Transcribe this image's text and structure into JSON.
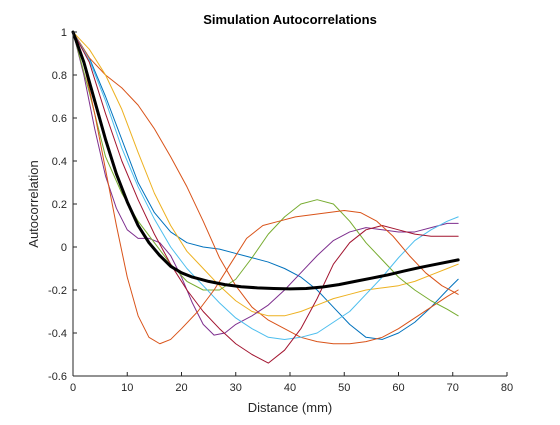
{
  "chart_data": {
    "type": "line",
    "title": "Simulation Autocorrelations",
    "xlabel": "Distance (mm)",
    "ylabel": "Autocorrelation",
    "xlim": [
      0,
      80
    ],
    "ylim": [
      -0.6,
      1
    ],
    "xticks": [
      0,
      10,
      20,
      30,
      40,
      50,
      60,
      70,
      80
    ],
    "yticks": [
      -0.6,
      -0.4,
      -0.2,
      0,
      0.2,
      0.4,
      0.6,
      0.8,
      1
    ],
    "ytick_labels": [
      "-0.6",
      "-0.4",
      "-0.2",
      "0",
      "0.2",
      "0.4",
      "0.6",
      "0.8",
      "1"
    ],
    "xtick_labels": [
      "0",
      "10",
      "20",
      "30",
      "40",
      "50",
      "60",
      "70",
      "80"
    ],
    "grid": false,
    "legend": "none",
    "series": [
      {
        "color": "#0072BD",
        "linewidth": 1,
        "x": [
          0,
          3,
          6,
          9,
          12,
          15,
          18,
          21,
          24,
          27,
          30,
          33,
          36,
          39,
          42,
          45,
          48,
          51,
          54,
          57,
          60,
          63,
          66,
          69,
          71
        ],
        "y": [
          1,
          0.88,
          0.7,
          0.5,
          0.3,
          0.16,
          0.07,
          0.02,
          0.0,
          -0.01,
          -0.03,
          -0.05,
          -0.07,
          -0.1,
          -0.14,
          -0.2,
          -0.28,
          -0.36,
          -0.42,
          -0.43,
          -0.4,
          -0.35,
          -0.28,
          -0.2,
          -0.15
        ]
      },
      {
        "color": "#D95319",
        "linewidth": 1,
        "x": [
          0,
          3,
          6,
          9,
          12,
          15,
          18,
          21,
          24,
          27,
          30,
          33,
          36,
          39,
          42,
          45,
          48,
          51,
          54,
          57,
          60,
          63,
          66,
          69,
          71
        ],
        "y": [
          1,
          0.88,
          0.8,
          0.74,
          0.66,
          0.55,
          0.42,
          0.28,
          0.12,
          -0.05,
          -0.18,
          -0.28,
          -0.34,
          -0.38,
          -0.42,
          -0.44,
          -0.45,
          -0.45,
          -0.44,
          -0.42,
          -0.38,
          -0.33,
          -0.28,
          -0.23,
          -0.2
        ]
      },
      {
        "color": "#EDB120",
        "linewidth": 1,
        "x": [
          0,
          3,
          6,
          9,
          12,
          15,
          18,
          21,
          24,
          27,
          30,
          33,
          36,
          39,
          42,
          45,
          48,
          51,
          54,
          57,
          60,
          63,
          66,
          69,
          71
        ],
        "y": [
          1,
          0.92,
          0.8,
          0.64,
          0.44,
          0.25,
          0.1,
          -0.02,
          -0.1,
          -0.18,
          -0.25,
          -0.3,
          -0.32,
          -0.32,
          -0.3,
          -0.27,
          -0.24,
          -0.22,
          -0.2,
          -0.19,
          -0.18,
          -0.16,
          -0.13,
          -0.1,
          -0.08
        ]
      },
      {
        "color": "#7E2F8E",
        "linewidth": 1,
        "x": [
          0,
          2,
          4,
          6,
          8,
          10,
          12,
          14,
          16,
          18,
          20,
          22,
          24,
          26,
          28,
          30,
          33,
          36,
          39,
          42,
          45,
          48,
          51,
          54,
          57,
          60,
          63,
          66,
          69,
          71
        ],
        "y": [
          1,
          0.8,
          0.55,
          0.33,
          0.18,
          0.08,
          0.04,
          0.04,
          0.02,
          -0.04,
          -0.14,
          -0.26,
          -0.36,
          -0.41,
          -0.4,
          -0.36,
          -0.32,
          -0.27,
          -0.2,
          -0.12,
          -0.04,
          0.03,
          0.07,
          0.09,
          0.08,
          0.07,
          0.07,
          0.09,
          0.11,
          0.11
        ]
      },
      {
        "color": "#77AC30",
        "linewidth": 1,
        "x": [
          0,
          3,
          6,
          9,
          12,
          15,
          18,
          21,
          24,
          27,
          30,
          33,
          36,
          39,
          42,
          45,
          48,
          51,
          54,
          57,
          60,
          63,
          66,
          69,
          71
        ],
        "y": [
          1,
          0.72,
          0.42,
          0.25,
          0.12,
          0.02,
          -0.08,
          -0.16,
          -0.2,
          -0.2,
          -0.15,
          -0.05,
          0.06,
          0.14,
          0.2,
          0.22,
          0.2,
          0.12,
          0.02,
          -0.06,
          -0.14,
          -0.2,
          -0.25,
          -0.29,
          -0.32
        ]
      },
      {
        "color": "#4DBEEE",
        "linewidth": 1,
        "x": [
          0,
          3,
          6,
          9,
          12,
          15,
          18,
          21,
          24,
          27,
          30,
          33,
          36,
          39,
          42,
          45,
          48,
          51,
          54,
          57,
          60,
          63,
          66,
          69,
          71
        ],
        "y": [
          1,
          0.87,
          0.68,
          0.46,
          0.28,
          0.13,
          0.0,
          -0.1,
          -0.18,
          -0.26,
          -0.33,
          -0.38,
          -0.42,
          -0.43,
          -0.42,
          -0.4,
          -0.35,
          -0.3,
          -0.22,
          -0.14,
          -0.05,
          0.03,
          0.08,
          0.12,
          0.14
        ]
      },
      {
        "color": "#A2142F",
        "linewidth": 1,
        "x": [
          0,
          3,
          6,
          9,
          12,
          15,
          18,
          21,
          24,
          27,
          30,
          33,
          36,
          39,
          42,
          45,
          48,
          51,
          54,
          57,
          60,
          63,
          66,
          69,
          71
        ],
        "y": [
          1,
          0.86,
          0.62,
          0.4,
          0.22,
          0.06,
          -0.08,
          -0.2,
          -0.3,
          -0.38,
          -0.45,
          -0.5,
          -0.54,
          -0.48,
          -0.38,
          -0.24,
          -0.08,
          0.02,
          0.08,
          0.1,
          0.08,
          0.06,
          0.05,
          0.05,
          0.05
        ]
      },
      {
        "color": "#D95319",
        "linewidth": 1,
        "x": [
          0,
          2,
          4,
          6,
          8,
          10,
          12,
          14,
          16,
          18,
          20,
          23,
          26,
          29,
          32,
          35,
          38,
          41,
          44,
          47,
          50,
          53,
          56,
          59,
          62,
          65,
          68,
          71
        ],
        "y": [
          1,
          0.85,
          0.62,
          0.36,
          0.1,
          -0.14,
          -0.32,
          -0.42,
          -0.45,
          -0.43,
          -0.38,
          -0.3,
          -0.2,
          -0.08,
          0.04,
          0.1,
          0.12,
          0.14,
          0.15,
          0.16,
          0.17,
          0.16,
          0.12,
          0.05,
          -0.04,
          -0.12,
          -0.18,
          -0.22
        ]
      },
      {
        "color": "#000000",
        "linewidth": 3,
        "x": [
          0,
          2,
          4,
          6,
          8,
          10,
          12,
          14,
          16,
          18,
          20,
          22,
          25,
          28,
          31,
          34,
          37,
          40,
          43,
          46,
          49,
          52,
          55,
          58,
          61,
          64,
          67,
          71
        ],
        "y": [
          1,
          0.86,
          0.68,
          0.5,
          0.34,
          0.21,
          0.1,
          0.02,
          -0.04,
          -0.09,
          -0.12,
          -0.14,
          -0.16,
          -0.175,
          -0.185,
          -0.19,
          -0.193,
          -0.195,
          -0.193,
          -0.186,
          -0.175,
          -0.16,
          -0.145,
          -0.13,
          -0.112,
          -0.095,
          -0.08,
          -0.06
        ]
      }
    ]
  }
}
